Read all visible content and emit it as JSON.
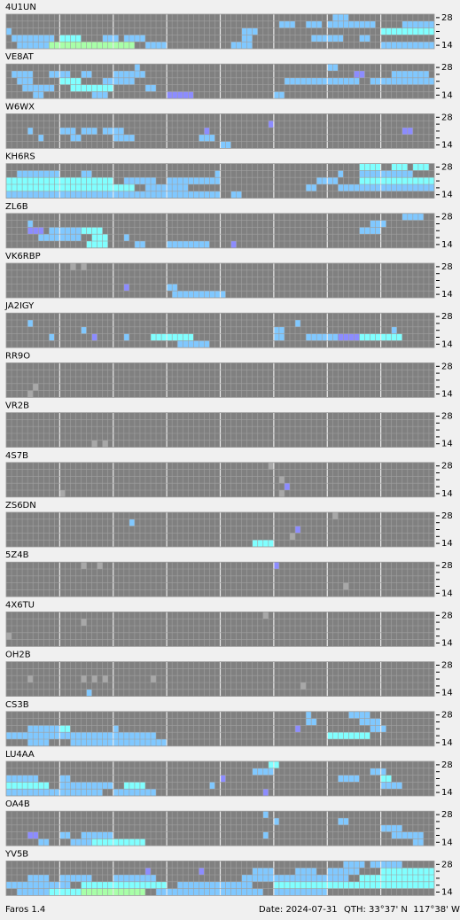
{
  "band_ticks": [
    28,
    14
  ],
  "level_colors": [
    "#808080",
    "#a8a8a8",
    "#8c8cff",
    "#80c8ff",
    "#80ffff",
    "#a8ffa8"
  ],
  "stations": [
    {
      "name": "4U1UN",
      "runs": [
        [
          0,
          61,
          3,
          3
        ],
        [
          1,
          51,
          3,
          3
        ],
        [
          1,
          56,
          3,
          3
        ],
        [
          1,
          60,
          9,
          3
        ],
        [
          1,
          74,
          6,
          3
        ],
        [
          2,
          0,
          1,
          3
        ],
        [
          2,
          44,
          3,
          3
        ],
        [
          2,
          70,
          10,
          4
        ],
        [
          3,
          1,
          8,
          3
        ],
        [
          3,
          10,
          4,
          4
        ],
        [
          3,
          18,
          3,
          3
        ],
        [
          3,
          22,
          4,
          3
        ],
        [
          3,
          44,
          2,
          3
        ],
        [
          3,
          57,
          6,
          3
        ],
        [
          3,
          66,
          2,
          3
        ],
        [
          4,
          2,
          6,
          3
        ],
        [
          4,
          8,
          16,
          5
        ],
        [
          4,
          26,
          4,
          3
        ],
        [
          4,
          42,
          4,
          3
        ],
        [
          4,
          70,
          10,
          3
        ]
      ]
    },
    {
      "name": "VE8AT",
      "runs": [
        [
          0,
          24,
          1,
          3
        ],
        [
          0,
          60,
          2,
          3
        ],
        [
          1,
          1,
          4,
          3
        ],
        [
          1,
          8,
          4,
          3
        ],
        [
          1,
          14,
          2,
          3
        ],
        [
          1,
          20,
          6,
          3
        ],
        [
          1,
          65,
          2,
          2
        ],
        [
          1,
          72,
          7,
          3
        ],
        [
          2,
          2,
          3,
          3
        ],
        [
          2,
          10,
          4,
          4
        ],
        [
          2,
          18,
          6,
          3
        ],
        [
          2,
          52,
          14,
          3
        ],
        [
          2,
          68,
          12,
          3
        ],
        [
          3,
          3,
          6,
          3
        ],
        [
          3,
          12,
          8,
          4
        ],
        [
          3,
          26,
          2,
          3
        ],
        [
          4,
          5,
          2,
          3
        ],
        [
          4,
          16,
          3,
          3
        ],
        [
          4,
          30,
          5,
          2
        ],
        [
          4,
          50,
          2,
          3
        ]
      ]
    },
    {
      "name": "W6WX",
      "runs": [
        [
          1,
          49,
          1,
          2
        ],
        [
          2,
          4,
          1,
          3
        ],
        [
          2,
          10,
          3,
          3
        ],
        [
          2,
          14,
          3,
          3
        ],
        [
          2,
          18,
          4,
          3
        ],
        [
          2,
          37,
          1,
          2
        ],
        [
          2,
          74,
          2,
          2
        ],
        [
          3,
          6,
          1,
          3
        ],
        [
          3,
          12,
          2,
          3
        ],
        [
          3,
          20,
          4,
          3
        ],
        [
          3,
          36,
          3,
          3
        ],
        [
          4,
          40,
          2,
          3
        ]
      ]
    },
    {
      "name": "KH6RS",
      "runs": [
        [
          0,
          66,
          4,
          4
        ],
        [
          0,
          72,
          3,
          4
        ],
        [
          0,
          76,
          3,
          4
        ],
        [
          1,
          2,
          8,
          3
        ],
        [
          1,
          14,
          2,
          3
        ],
        [
          1,
          39,
          1,
          3
        ],
        [
          1,
          62,
          1,
          3
        ],
        [
          1,
          66,
          10,
          3
        ],
        [
          2,
          0,
          20,
          4
        ],
        [
          2,
          22,
          6,
          3
        ],
        [
          2,
          30,
          10,
          3
        ],
        [
          2,
          58,
          4,
          3
        ],
        [
          2,
          66,
          14,
          4
        ],
        [
          3,
          0,
          24,
          4
        ],
        [
          3,
          26,
          8,
          3
        ],
        [
          3,
          56,
          2,
          3
        ],
        [
          3,
          62,
          18,
          3
        ],
        [
          4,
          0,
          40,
          3
        ],
        [
          4,
          42,
          2,
          3
        ]
      ]
    },
    {
      "name": "ZL6B",
      "runs": [
        [
          0,
          74,
          4,
          3
        ],
        [
          1,
          4,
          1,
          3
        ],
        [
          1,
          68,
          3,
          3
        ],
        [
          2,
          4,
          3,
          2
        ],
        [
          2,
          8,
          6,
          3
        ],
        [
          2,
          14,
          4,
          4
        ],
        [
          2,
          66,
          4,
          3
        ],
        [
          3,
          6,
          8,
          3
        ],
        [
          3,
          16,
          3,
          4
        ],
        [
          3,
          22,
          1,
          3
        ],
        [
          4,
          15,
          4,
          4
        ],
        [
          4,
          24,
          2,
          3
        ],
        [
          4,
          30,
          8,
          3
        ],
        [
          4,
          42,
          1,
          2
        ]
      ]
    },
    {
      "name": "VK6RBP",
      "runs": [
        [
          0,
          12,
          1,
          1
        ],
        [
          0,
          14,
          1,
          1
        ],
        [
          3,
          22,
          1,
          2
        ],
        [
          3,
          30,
          2,
          3
        ],
        [
          4,
          31,
          10,
          3
        ]
      ]
    },
    {
      "name": "JA2IGY",
      "runs": [
        [
          1,
          4,
          1,
          3
        ],
        [
          1,
          54,
          1,
          3
        ],
        [
          2,
          14,
          1,
          3
        ],
        [
          2,
          50,
          2,
          3
        ],
        [
          2,
          72,
          1,
          3
        ],
        [
          3,
          8,
          1,
          3
        ],
        [
          3,
          16,
          1,
          2
        ],
        [
          3,
          22,
          1,
          3
        ],
        [
          3,
          27,
          8,
          4
        ],
        [
          3,
          50,
          2,
          3
        ],
        [
          3,
          56,
          8,
          3
        ],
        [
          3,
          62,
          4,
          2
        ],
        [
          3,
          66,
          8,
          4
        ],
        [
          4,
          32,
          6,
          3
        ]
      ]
    },
    {
      "name": "RR9O",
      "runs": [
        [
          3,
          5,
          1,
          1
        ],
        [
          4,
          4,
          1,
          1
        ]
      ]
    },
    {
      "name": "VR2B",
      "runs": [
        [
          4,
          16,
          1,
          1
        ],
        [
          4,
          18,
          1,
          1
        ]
      ]
    },
    {
      "name": "4S7B",
      "runs": [
        [
          0,
          49,
          1,
          1
        ],
        [
          2,
          51,
          1,
          1
        ],
        [
          3,
          52,
          1,
          2
        ],
        [
          4,
          10,
          1,
          1
        ],
        [
          4,
          51,
          1,
          1
        ]
      ]
    },
    {
      "name": "ZS6DN",
      "runs": [
        [
          0,
          61,
          1,
          1
        ],
        [
          1,
          23,
          1,
          3
        ],
        [
          2,
          54,
          1,
          2
        ],
        [
          3,
          53,
          1,
          1
        ],
        [
          4,
          46,
          4,
          4
        ]
      ]
    },
    {
      "name": "5Z4B",
      "runs": [
        [
          0,
          14,
          1,
          1
        ],
        [
          0,
          17,
          1,
          1
        ],
        [
          0,
          50,
          1,
          2
        ],
        [
          3,
          63,
          1,
          1
        ]
      ]
    },
    {
      "name": "4X6TU",
      "runs": [
        [
          0,
          48,
          1,
          1
        ],
        [
          1,
          14,
          1,
          1
        ],
        [
          3,
          0,
          1,
          1
        ]
      ]
    },
    {
      "name": "OH2B",
      "runs": [
        [
          2,
          4,
          1,
          1
        ],
        [
          2,
          14,
          1,
          1
        ],
        [
          2,
          16,
          1,
          1
        ],
        [
          2,
          18,
          1,
          1
        ],
        [
          2,
          27,
          1,
          1
        ],
        [
          3,
          55,
          1,
          1
        ],
        [
          4,
          15,
          1,
          3
        ]
      ]
    },
    {
      "name": "CS3B",
      "runs": [
        [
          0,
          56,
          1,
          3
        ],
        [
          0,
          64,
          4,
          3
        ],
        [
          1,
          56,
          2,
          3
        ],
        [
          1,
          66,
          4,
          3
        ],
        [
          2,
          4,
          6,
          3
        ],
        [
          2,
          10,
          2,
          4
        ],
        [
          2,
          20,
          1,
          3
        ],
        [
          2,
          54,
          1,
          2
        ],
        [
          2,
          68,
          3,
          3
        ],
        [
          3,
          0,
          28,
          3
        ],
        [
          3,
          60,
          8,
          4
        ],
        [
          4,
          4,
          4,
          3
        ],
        [
          4,
          12,
          18,
          3
        ]
      ]
    },
    {
      "name": "LU4AA",
      "runs": [
        [
          0,
          49,
          2,
          4
        ],
        [
          1,
          46,
          4,
          3
        ],
        [
          1,
          68,
          3,
          3
        ],
        [
          2,
          0,
          6,
          3
        ],
        [
          2,
          10,
          2,
          3
        ],
        [
          2,
          40,
          1,
          2
        ],
        [
          2,
          62,
          4,
          3
        ],
        [
          2,
          70,
          2,
          4
        ],
        [
          3,
          0,
          8,
          4
        ],
        [
          3,
          10,
          10,
          3
        ],
        [
          3,
          22,
          4,
          4
        ],
        [
          3,
          38,
          1,
          3
        ],
        [
          3,
          70,
          4,
          3
        ],
        [
          4,
          0,
          18,
          3
        ],
        [
          4,
          20,
          8,
          3
        ],
        [
          4,
          48,
          1,
          2
        ]
      ]
    },
    {
      "name": "OA4B",
      "runs": [
        [
          0,
          48,
          1,
          3
        ],
        [
          1,
          50,
          1,
          3
        ],
        [
          1,
          62,
          2,
          3
        ],
        [
          2,
          70,
          4,
          3
        ],
        [
          3,
          4,
          2,
          2
        ],
        [
          3,
          10,
          2,
          3
        ],
        [
          3,
          14,
          6,
          3
        ],
        [
          3,
          48,
          1,
          3
        ],
        [
          3,
          72,
          6,
          3
        ],
        [
          4,
          6,
          2,
          3
        ],
        [
          4,
          12,
          6,
          3
        ],
        [
          4,
          16,
          10,
          4
        ],
        [
          4,
          76,
          2,
          3
        ]
      ]
    },
    {
      "name": "YV5B",
      "runs": [
        [
          0,
          63,
          4,
          3
        ],
        [
          0,
          68,
          6,
          3
        ],
        [
          1,
          26,
          1,
          2
        ],
        [
          1,
          36,
          1,
          2
        ],
        [
          1,
          46,
          4,
          3
        ],
        [
          1,
          54,
          4,
          3
        ],
        [
          1,
          60,
          6,
          3
        ],
        [
          1,
          70,
          10,
          4
        ],
        [
          2,
          4,
          4,
          3
        ],
        [
          2,
          10,
          6,
          3
        ],
        [
          2,
          20,
          8,
          3
        ],
        [
          2,
          44,
          20,
          3
        ],
        [
          2,
          66,
          14,
          4
        ],
        [
          3,
          0,
          12,
          3
        ],
        [
          3,
          14,
          16,
          4
        ],
        [
          3,
          32,
          14,
          3
        ],
        [
          3,
          50,
          30,
          4
        ],
        [
          4,
          2,
          6,
          3
        ],
        [
          4,
          8,
          18,
          4
        ],
        [
          4,
          14,
          12,
          5
        ],
        [
          4,
          28,
          20,
          3
        ],
        [
          4,
          50,
          10,
          3
        ]
      ]
    }
  ],
  "footer": {
    "app": "Faros 1.4",
    "date": "Date: 2024-07-31",
    "qth": "QTH: 33°37' N  117°38' W"
  }
}
